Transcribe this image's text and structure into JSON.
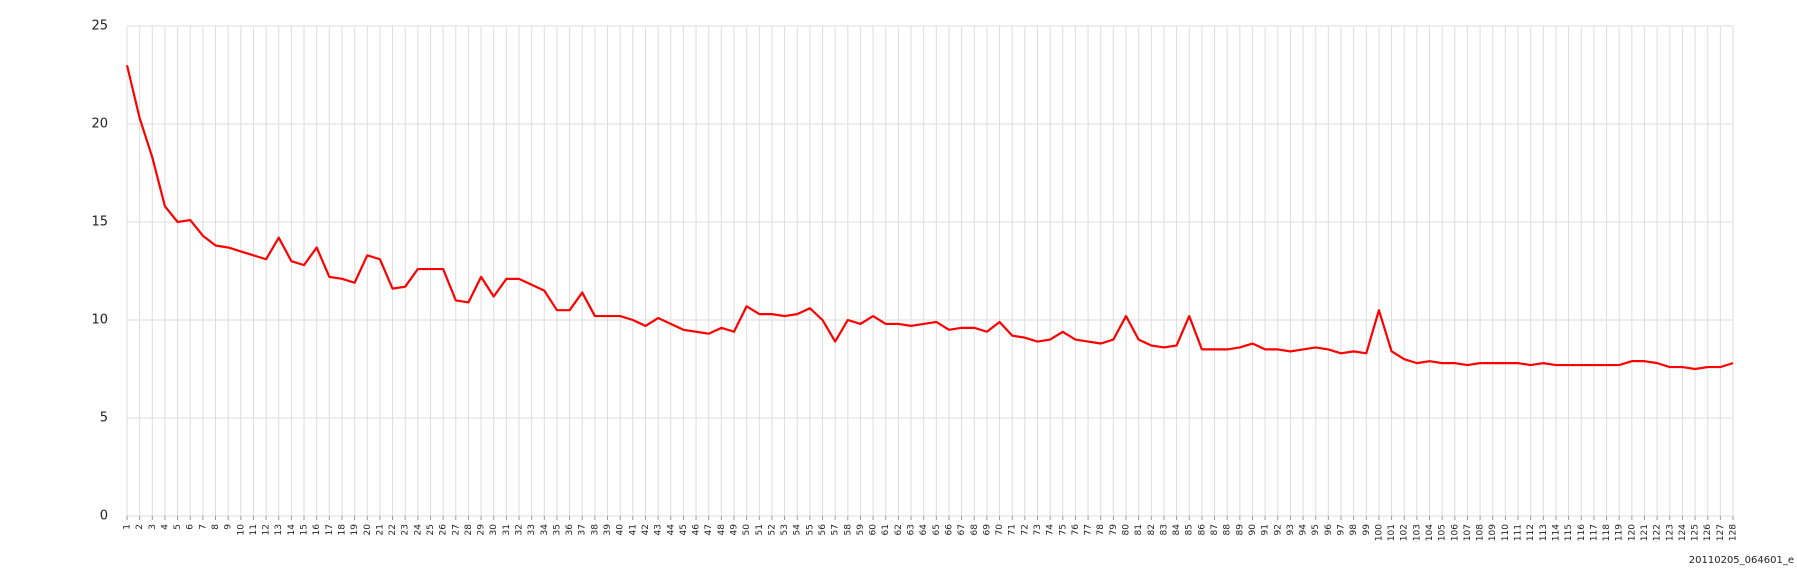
{
  "chart_data": {
    "type": "line",
    "categories": [
      "1",
      "2",
      "3",
      "4",
      "5",
      "6",
      "7",
      "8",
      "9",
      "10",
      "11",
      "12",
      "13",
      "14",
      "15",
      "16",
      "17",
      "18",
      "19",
      "20",
      "21",
      "22",
      "23",
      "24",
      "25",
      "26",
      "27",
      "28",
      "29",
      "30",
      "31",
      "32",
      "33",
      "34",
      "35",
      "36",
      "37",
      "38",
      "39",
      "40",
      "41",
      "42",
      "43",
      "44",
      "45",
      "46",
      "47",
      "48",
      "49",
      "50",
      "51",
      "52",
      "53",
      "54",
      "55",
      "56",
      "57",
      "58",
      "59",
      "60",
      "61",
      "62",
      "63",
      "64",
      "65",
      "66",
      "67",
      "68",
      "69",
      "70",
      "71",
      "72",
      "73",
      "74",
      "75",
      "76",
      "77",
      "78",
      "79",
      "80",
      "81",
      "82",
      "83",
      "84",
      "85",
      "86",
      "87",
      "88",
      "89",
      "90",
      "91",
      "92",
      "93",
      "94",
      "95",
      "96",
      "97",
      "98",
      "99",
      "100",
      "101",
      "102",
      "103",
      "104",
      "105",
      "106",
      "107",
      "108",
      "109",
      "110",
      "111",
      "112",
      "113",
      "114",
      "115",
      "116",
      "117",
      "118",
      "119",
      "120",
      "121",
      "122",
      "123",
      "124",
      "125",
      "126",
      "127",
      "128"
    ],
    "values": [
      23.0,
      20.3,
      18.3,
      15.8,
      15.0,
      15.1,
      14.3,
      13.8,
      13.7,
      13.5,
      13.3,
      13.1,
      14.2,
      13.0,
      12.8,
      13.7,
      12.2,
      12.1,
      11.9,
      13.3,
      13.1,
      11.6,
      11.7,
      12.6,
      12.6,
      12.6,
      11.0,
      10.9,
      12.2,
      11.2,
      12.1,
      12.1,
      11.8,
      11.5,
      10.5,
      10.5,
      11.4,
      10.2,
      10.2,
      10.2,
      10.0,
      9.7,
      10.1,
      9.8,
      9.5,
      9.4,
      9.3,
      9.6,
      9.4,
      10.7,
      10.3,
      10.3,
      10.2,
      10.3,
      10.6,
      10.0,
      8.9,
      10.0,
      9.8,
      10.2,
      9.8,
      9.8,
      9.7,
      9.8,
      9.9,
      9.5,
      9.6,
      9.6,
      9.4,
      9.9,
      9.2,
      9.1,
      8.9,
      9.0,
      9.4,
      9.0,
      8.9,
      8.8,
      9.0,
      10.2,
      9.0,
      8.7,
      8.6,
      8.7,
      10.2,
      8.5,
      8.5,
      8.5,
      8.6,
      8.8,
      8.5,
      8.5,
      8.4,
      8.5,
      8.6,
      8.5,
      8.3,
      8.4,
      8.3,
      10.5,
      8.4,
      8.0,
      7.8,
      7.9,
      7.8,
      7.8,
      7.7,
      7.8,
      7.8,
      7.8,
      7.8,
      7.7,
      7.8,
      7.7,
      7.7,
      7.7,
      7.7,
      7.7,
      7.7,
      7.9,
      7.9,
      7.8,
      7.6,
      7.6,
      7.5,
      7.6,
      7.6,
      7.8
    ],
    "color": "#ff0000",
    "ylim": [
      0,
      25
    ],
    "yticks": [
      0,
      5,
      10,
      15,
      20,
      25
    ],
    "grid": true,
    "annotation": "20110205_064601_e"
  }
}
